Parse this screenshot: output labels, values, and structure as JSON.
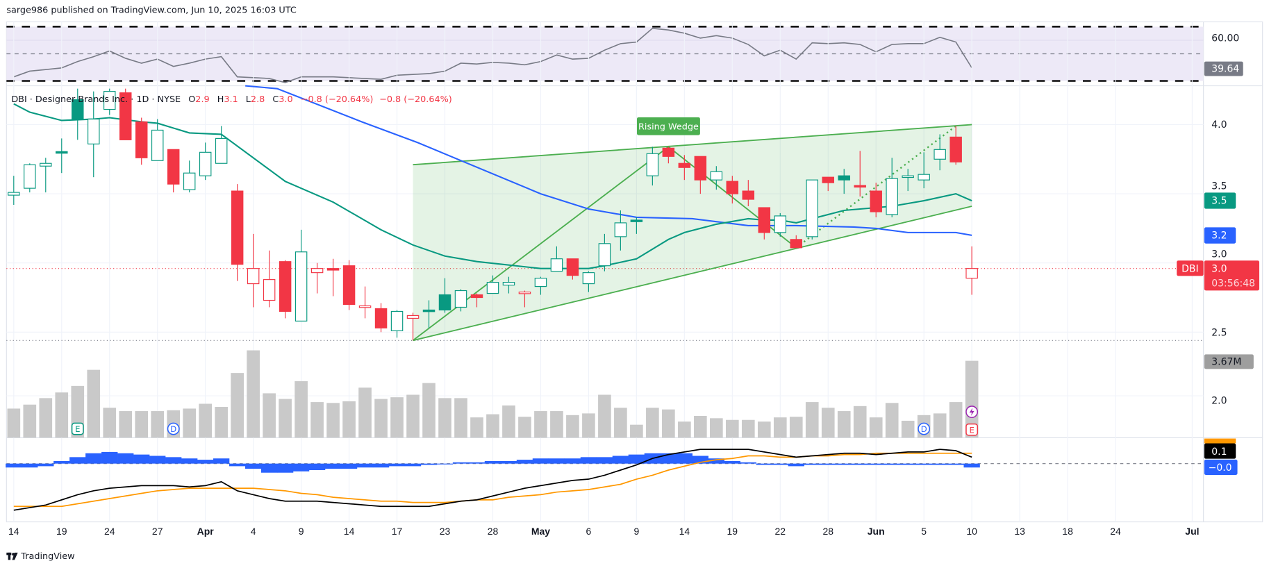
{
  "header": {
    "published": "sarge986 published on TradingView.com, Jun 10, 2025 16:03 UTC"
  },
  "legend": {
    "title": "DBI · Designer Brands Inc. · 1D · NYSE",
    "o_label": "O",
    "o": "2.9",
    "h_label": "H",
    "h": "3.1",
    "l_label": "L",
    "l": "2.8",
    "c_label": "C",
    "c": "3.0",
    "change": "−0.8 (−20.64%)",
    "change2": "−0.8 (−20.64%)"
  },
  "pattern": {
    "label": "Rising Wedge"
  },
  "axis": {
    "rsi_tick": "60.00",
    "rsi_badge": "39.64",
    "price_ticks": [
      "4.0",
      "3.5",
      "3.0",
      "2.5"
    ],
    "ma_fast_badge": "3.5",
    "ma_slow_badge": "3.2",
    "symbol_tag": "DBI",
    "last_price": "3.0",
    "countdown": "03:56:48",
    "volume_tick": "2.0",
    "volume_badge": "3.67M",
    "macd_badge": "0.1",
    "hist_badge": "−0.0"
  },
  "x_labels": [
    "14",
    "19",
    "24",
    "27",
    "Apr",
    "4",
    "9",
    "14",
    "17",
    "23",
    "28",
    "May",
    "6",
    "9",
    "14",
    "19",
    "22",
    "28",
    "Jun",
    "5",
    "10",
    "13",
    "18",
    "24",
    "Jul"
  ],
  "markers": {
    "earnings": "E",
    "dividend": "D"
  },
  "footer": {
    "brand": "TradingView"
  },
  "colors": {
    "up": "#089981",
    "down": "#f23645",
    "ma_fast": "#089981",
    "ma_slow": "#2962ff",
    "wedge": "#4caf50",
    "volume": "#c9c9c9",
    "rsi": "#787b86",
    "rsi_band": "#ede9f7",
    "macd": "#000000",
    "signal": "#ff9800",
    "histogram": "#2962ff"
  },
  "chart_data": {
    "type": "candlestick",
    "symbol": "DBI",
    "ylim": [
      2.3,
      4.3
    ],
    "candles": [
      [
        3.49,
        3.63,
        3.42,
        3.51
      ],
      [
        3.54,
        3.72,
        3.51,
        3.71
      ],
      [
        3.7,
        3.76,
        3.51,
        3.72
      ],
      [
        3.805,
        3.9,
        3.65,
        3.8
      ],
      [
        4.18,
        4.26,
        3.89,
        4.04
      ],
      [
        3.86,
        4.24,
        3.62,
        4.04
      ],
      [
        4.11,
        4.26,
        4.07,
        4.24
      ],
      [
        4.23,
        4.26,
        3.89,
        3.89
      ],
      [
        4.02,
        4.05,
        3.71,
        3.76
      ],
      [
        3.74,
        4.04,
        3.74,
        3.96
      ],
      [
        3.82,
        3.82,
        3.51,
        3.57
      ],
      [
        3.53,
        3.74,
        3.51,
        3.65
      ],
      [
        3.63,
        3.87,
        3.6,
        3.8
      ],
      [
        3.72,
        3.99,
        3.72,
        3.9
      ],
      [
        3.52,
        3.57,
        2.87,
        2.99
      ],
      [
        2.85,
        3.21,
        2.68,
        2.96
      ],
      [
        2.73,
        3.09,
        2.68,
        2.88
      ],
      [
        3.01,
        3.02,
        2.6,
        2.65
      ],
      [
        2.58,
        3.24,
        2.58,
        3.08
      ],
      [
        2.93,
        3.0,
        2.78,
        2.96
      ],
      [
        2.96,
        3.03,
        2.76,
        2.95
      ],
      [
        2.98,
        3.02,
        2.66,
        2.7
      ],
      [
        2.68,
        2.83,
        2.6,
        2.69
      ],
      [
        2.67,
        2.71,
        2.5,
        2.53
      ],
      [
        2.51,
        2.66,
        2.46,
        2.65
      ],
      [
        2.6,
        2.64,
        2.44,
        2.62
      ],
      [
        2.66,
        2.73,
        2.53,
        2.65
      ],
      [
        2.77,
        2.89,
        2.64,
        2.66
      ],
      [
        2.68,
        2.81,
        2.65,
        2.8
      ],
      [
        2.77,
        2.78,
        2.68,
        2.75
      ],
      [
        2.78,
        2.91,
        2.78,
        2.86
      ],
      [
        2.84,
        2.9,
        2.78,
        2.86
      ],
      [
        2.78,
        2.8,
        2.68,
        2.79
      ],
      [
        2.83,
        2.9,
        2.77,
        2.89
      ],
      [
        2.94,
        3.12,
        2.94,
        3.03
      ],
      [
        3.03,
        3.03,
        2.88,
        2.91
      ],
      [
        2.85,
        2.94,
        2.79,
        2.93
      ],
      [
        2.98,
        3.21,
        2.94,
        3.14
      ],
      [
        3.19,
        3.38,
        3.09,
        3.29
      ],
      [
        3.31,
        3.33,
        3.21,
        3.3
      ],
      [
        3.63,
        3.84,
        3.56,
        3.79
      ],
      [
        3.83,
        3.84,
        3.72,
        3.77
      ],
      [
        3.72,
        3.78,
        3.6,
        3.69
      ],
      [
        3.77,
        3.77,
        3.5,
        3.6
      ],
      [
        3.6,
        3.7,
        3.53,
        3.66
      ],
      [
        3.59,
        3.63,
        3.43,
        3.5
      ],
      [
        3.52,
        3.6,
        3.41,
        3.46
      ],
      [
        3.4,
        3.4,
        3.17,
        3.22
      ],
      [
        3.22,
        3.36,
        3.19,
        3.34
      ],
      [
        3.17,
        3.2,
        3.11,
        3.11
      ],
      [
        3.19,
        3.6,
        3.17,
        3.6
      ],
      [
        3.62,
        3.62,
        3.52,
        3.58
      ],
      [
        3.63,
        3.68,
        3.5,
        3.6
      ],
      [
        3.56,
        3.81,
        3.48,
        3.55
      ],
      [
        3.52,
        3.58,
        3.33,
        3.37
      ],
      [
        3.35,
        3.76,
        3.33,
        3.61
      ],
      [
        3.63,
        3.68,
        3.52,
        3.63
      ],
      [
        3.6,
        3.8,
        3.54,
        3.64
      ],
      [
        3.75,
        3.93,
        3.67,
        3.82
      ],
      [
        3.91,
        3.99,
        3.71,
        3.73
      ],
      [
        2.89,
        3.12,
        2.77,
        2.96
      ]
    ],
    "volume_millions": [
      1.39,
      1.58,
      1.89,
      2.16,
      2.47,
      3.24,
      1.43,
      1.27,
      1.27,
      1.27,
      1.31,
      1.39,
      1.62,
      1.47,
      3.09,
      4.17,
      2.12,
      1.85,
      2.7,
      1.7,
      1.66,
      1.74,
      2.39,
      1.85,
      1.93,
      2.05,
      2.61,
      1.89,
      1.89,
      0.97,
      1.12,
      1.54,
      1.0,
      1.27,
      1.27,
      1.08,
      1.16,
      2.05,
      1.43,
      0.62,
      1.43,
      1.35,
      0.77,
      1.04,
      0.93,
      0.85,
      0.85,
      0.77,
      0.97,
      1.0,
      1.7,
      1.43,
      1.27,
      1.51,
      0.97,
      1.66,
      0.81,
      1.08,
      1.16,
      1.7,
      3.67
    ],
    "ma_fast": [
      [
        0,
        4.15
      ],
      [
        1,
        4.09
      ],
      [
        3,
        4.03
      ],
      [
        5,
        4.04
      ],
      [
        6,
        4.05
      ],
      [
        8,
        4.02
      ],
      [
        9,
        4.01
      ],
      [
        11,
        3.94
      ],
      [
        13,
        3.93
      ],
      [
        17,
        3.59
      ],
      [
        20,
        3.44
      ],
      [
        23,
        3.24
      ],
      [
        25,
        3.13
      ],
      [
        27,
        3.05
      ],
      [
        29,
        3.01
      ],
      [
        33,
        2.96
      ],
      [
        36,
        2.96
      ],
      [
        37,
        2.98
      ],
      [
        39,
        3.03
      ],
      [
        41,
        3.17
      ],
      [
        42,
        3.22
      ],
      [
        44,
        3.28
      ],
      [
        46,
        3.32
      ],
      [
        47,
        3.31
      ],
      [
        48,
        3.31
      ],
      [
        49,
        3.29
      ],
      [
        50,
        3.32
      ],
      [
        52,
        3.38
      ],
      [
        53,
        3.39
      ],
      [
        55,
        3.41
      ],
      [
        57,
        3.45
      ],
      [
        59,
        3.5
      ],
      [
        60,
        3.45
      ]
    ],
    "ma_slow": [
      [
        14.5,
        4.36
      ],
      [
        16.5,
        4.26
      ],
      [
        21.8,
        4.02
      ],
      [
        25.3,
        3.87
      ],
      [
        33,
        3.5
      ],
      [
        36,
        3.39
      ],
      [
        39,
        3.33
      ],
      [
        42.5,
        3.32
      ],
      [
        46,
        3.27
      ],
      [
        49,
        3.27
      ],
      [
        52.6,
        3.26
      ],
      [
        54,
        3.25
      ],
      [
        56,
        3.22
      ],
      [
        59,
        3.22
      ],
      [
        60,
        3.2
      ]
    ],
    "wedge": {
      "upper": [
        [
          25,
          3.71
        ],
        [
          60,
          4.0
        ]
      ],
      "lower": [
        [
          25,
          2.44
        ],
        [
          60,
          3.41
        ]
      ],
      "zigzag": [
        [
          25,
          2.44
        ],
        [
          41,
          3.84
        ],
        [
          49,
          3.11
        ]
      ],
      "projection": [
        [
          49,
          3.11
        ],
        [
          59,
          3.99
        ]
      ],
      "label_at": [
        41.2,
        3.99
      ]
    },
    "last_close": 2.96,
    "period_low": 2.44,
    "rsi": [
      33.0,
      37.2,
      38.4,
      39.6,
      44.3,
      47.9,
      52.1,
      46.7,
      43.1,
      46.1,
      40.7,
      43.1,
      46.1,
      47.9,
      33.0,
      32.4,
      31.8,
      28.8,
      33.0,
      33.0,
      33.0,
      32.4,
      31.8,
      31.2,
      34.2,
      34.8,
      35.4,
      37.2,
      43.1,
      42.5,
      43.7,
      43.1,
      41.9,
      44.3,
      49.1,
      46.1,
      46.7,
      52.7,
      57.5,
      58.7,
      68.8,
      67.6,
      65.2,
      61.6,
      63.4,
      61.6,
      56.9,
      48.5,
      52.7,
      46.1,
      58.1,
      57.5,
      58.1,
      56.9,
      51.5,
      56.9,
      57.5,
      57.5,
      62.2,
      58.7,
      39.64
    ],
    "rsi_levels": [
      70,
      50,
      30
    ],
    "macd": [
      -0.36,
      -0.34,
      -0.32,
      -0.28,
      -0.24,
      -0.21,
      -0.19,
      -0.18,
      -0.17,
      -0.17,
      -0.17,
      -0.18,
      -0.17,
      -0.14,
      -0.21,
      -0.24,
      -0.27,
      -0.29,
      -0.29,
      -0.29,
      -0.3,
      -0.31,
      -0.32,
      -0.33,
      -0.33,
      -0.33,
      -0.33,
      -0.31,
      -0.29,
      -0.28,
      -0.25,
      -0.22,
      -0.19,
      -0.17,
      -0.15,
      -0.13,
      -0.12,
      -0.09,
      -0.05,
      -0.01,
      0.04,
      0.07,
      0.09,
      0.11,
      0.11,
      0.11,
      0.11,
      0.09,
      0.07,
      0.05,
      0.06,
      0.07,
      0.08,
      0.08,
      0.07,
      0.08,
      0.09,
      0.09,
      0.11,
      0.1,
      0.05
    ],
    "signal": [
      -0.33,
      -0.33,
      -0.33,
      -0.33,
      -0.31,
      -0.29,
      -0.27,
      -0.25,
      -0.23,
      -0.21,
      -0.2,
      -0.19,
      -0.19,
      -0.19,
      -0.19,
      -0.19,
      -0.2,
      -0.21,
      -0.23,
      -0.24,
      -0.26,
      -0.27,
      -0.28,
      -0.29,
      -0.29,
      -0.3,
      -0.3,
      -0.3,
      -0.29,
      -0.28,
      -0.28,
      -0.26,
      -0.25,
      -0.24,
      -0.22,
      -0.21,
      -0.2,
      -0.18,
      -0.16,
      -0.12,
      -0.09,
      -0.05,
      -0.02,
      0.01,
      0.03,
      0.04,
      0.06,
      0.06,
      0.05,
      0.05,
      0.06,
      0.06,
      0.07,
      0.07,
      0.08,
      0.08,
      0.08,
      0.08,
      0.08,
      0.08,
      0.08
    ],
    "histogram": [
      -0.03,
      -0.03,
      -0.02,
      0.02,
      0.05,
      0.08,
      0.09,
      0.08,
      0.07,
      0.06,
      0.05,
      0.04,
      0.03,
      0.04,
      -0.02,
      -0.04,
      -0.07,
      -0.07,
      -0.06,
      -0.05,
      -0.04,
      -0.04,
      -0.03,
      -0.03,
      -0.02,
      -0.02,
      -0.01,
      0.0,
      0.01,
      0.01,
      0.02,
      0.02,
      0.03,
      0.04,
      0.04,
      0.04,
      0.05,
      0.05,
      0.06,
      0.07,
      0.08,
      0.08,
      0.08,
      0.06,
      0.04,
      0.02,
      0.01,
      -0.01,
      -0.01,
      -0.02,
      -0.01,
      -0.01,
      -0.01,
      -0.01,
      -0.01,
      -0.01,
      -0.01,
      -0.01,
      -0.01,
      -0.01,
      -0.03
    ],
    "event_markers": [
      {
        "bar": 4,
        "type": "earnings"
      },
      {
        "bar": 10,
        "type": "dividend"
      },
      {
        "bar": 57,
        "type": "dividend"
      },
      {
        "bar": 60,
        "type": "split-flash"
      },
      {
        "bar": 60,
        "type": "earnings-upcoming"
      }
    ]
  }
}
